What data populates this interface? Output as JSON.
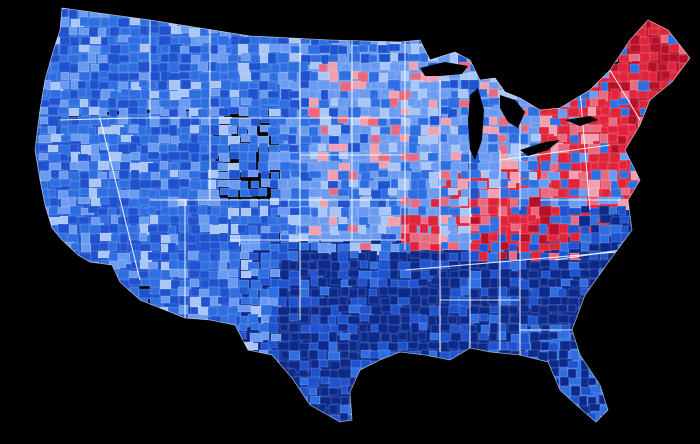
{
  "map": {
    "kind": "county choropleth of the contiguous United States",
    "background_color": "#000000",
    "border_color": "#ffffff",
    "color_scale": {
      "dark_blue": "#0c2a8c",
      "mid_blue": "#1f52cf",
      "blue": "#2f6ee0",
      "light_blue": "#6b9bf0",
      "pale_blue": "#a9c6f7",
      "pale_red": "#f0a0ae",
      "light_red": "#e86a80",
      "red": "#e0243c",
      "dark_red": "#b8102a"
    },
    "regions": [
      {
        "name": "pacific-northwest",
        "shade": "blue"
      },
      {
        "name": "california",
        "shade": "mid_blue"
      },
      {
        "name": "nevada-utah",
        "shade": "blue"
      },
      {
        "name": "mountain-north",
        "shade": "blue"
      },
      {
        "name": "southwest",
        "shade": "mid_blue"
      },
      {
        "name": "great-plains",
        "shade": "light_blue"
      },
      {
        "name": "texas-oklahoma",
        "shade": "dark_blue"
      },
      {
        "name": "deep-south",
        "shade": "dark_blue"
      },
      {
        "name": "southeast-atlantic",
        "shade": "dark_blue"
      },
      {
        "name": "florida",
        "shade": "blue"
      },
      {
        "name": "midwest",
        "shade": "light_blue"
      },
      {
        "name": "great-lakes",
        "shade": "light_blue"
      },
      {
        "name": "appalachia",
        "shade": "red"
      },
      {
        "name": "northeast",
        "shade": "red"
      },
      {
        "name": "new-england",
        "shade": "dark_red"
      }
    ]
  }
}
